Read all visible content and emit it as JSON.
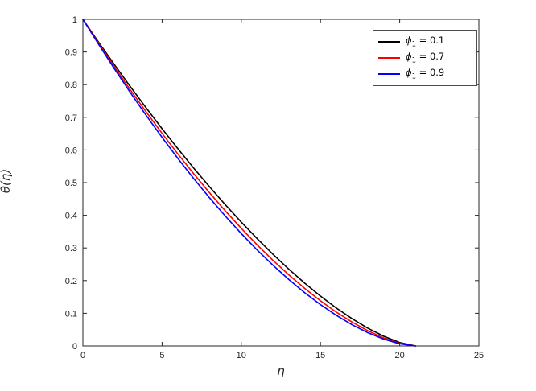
{
  "figure": {
    "background": "#ffffff",
    "axis_color": "#262626",
    "tick_label_color": "#262626"
  },
  "chart_data": {
    "type": "line",
    "title": "",
    "xlabel": "η",
    "ylabel": "θ(η)",
    "xlim": [
      0,
      25
    ],
    "ylim": [
      0,
      1
    ],
    "xticks": [
      0,
      5,
      10,
      15,
      20,
      25
    ],
    "yticks": [
      0,
      0.1,
      0.2,
      0.3,
      0.4,
      0.5,
      0.6,
      0.7,
      0.8,
      0.9,
      1
    ],
    "xtick_labels": [
      "0",
      "5",
      "10",
      "15",
      "20",
      "25"
    ],
    "ytick_labels": [
      "0",
      "0.1",
      "0.2",
      "0.3",
      "0.4",
      "0.5",
      "0.6",
      "0.7",
      "0.8",
      "0.9",
      "1"
    ],
    "grid": false,
    "legend_position": "top-right",
    "x": [
      0,
      1,
      2,
      3,
      4,
      5,
      6,
      7,
      8,
      9,
      10,
      11,
      12,
      13,
      14,
      15,
      16,
      17,
      18,
      19,
      20,
      21
    ],
    "series": [
      {
        "name": "phi1 = 0.1",
        "legend_symbol": "ϕ",
        "legend_subscript": "1",
        "legend_text": " = 0.1",
        "color": "#000000",
        "values": [
          1,
          0.9294,
          0.8606,
          0.7936,
          0.7284,
          0.665,
          0.6037,
          0.5444,
          0.4871,
          0.432,
          0.3791,
          0.3286,
          0.2806,
          0.2351,
          0.1924,
          0.1527,
          0.1161,
          0.0832,
          0.054,
          0.0295,
          0.0104,
          0
        ]
      },
      {
        "name": "phi1 = 0.7",
        "legend_symbol": "ϕ",
        "legend_subscript": "1",
        "legend_text": " = 0.7",
        "color": "#ff0000",
        "values": [
          1,
          0.9258,
          0.8537,
          0.7838,
          0.7161,
          0.6507,
          0.5876,
          0.527,
          0.4687,
          0.413,
          0.36,
          0.3096,
          0.2622,
          0.2177,
          0.1763,
          0.1382,
          0.1035,
          0.0728,
          0.0462,
          0.0244,
          0.0081,
          0
        ]
      },
      {
        "name": "phi1 = 0.9",
        "legend_symbol": "ϕ",
        "legend_subscript": "1",
        "legend_text": " = 0.9",
        "color": "#0000ff",
        "values": [
          1,
          0.9227,
          0.8478,
          0.7754,
          0.7056,
          0.6385,
          0.574,
          0.5122,
          0.4533,
          0.3972,
          0.3441,
          0.294,
          0.2471,
          0.2035,
          0.1632,
          0.1266,
          0.0937,
          0.0648,
          0.0403,
          0.0207,
          0.0066,
          0
        ]
      }
    ]
  }
}
